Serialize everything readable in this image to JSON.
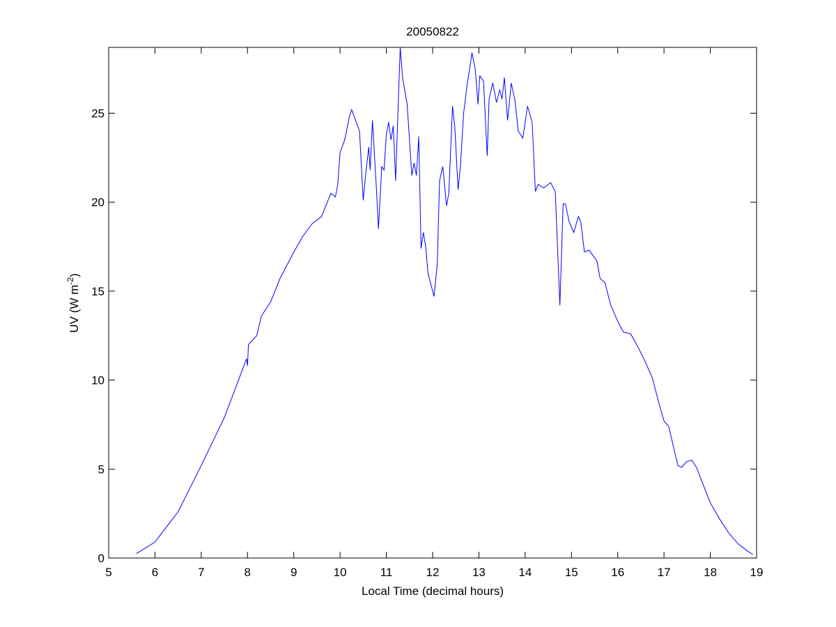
{
  "chart_data": {
    "type": "line",
    "title": "20050822",
    "xlabel": "Local Time (decimal hours)",
    "ylabel": [
      "UV (W m",
      "-2",
      ")"
    ],
    "x": [
      5.6,
      6,
      6.5,
      7,
      7.5,
      7.98,
      8.0,
      8.02,
      8.2,
      8.3,
      8.5,
      8.7,
      8.9,
      9.0,
      9.2,
      9.4,
      9.6,
      9.8,
      9.9,
      9.95,
      10.0,
      10.1,
      10.2,
      10.25,
      10.35,
      10.42,
      10.5,
      10.55,
      10.62,
      10.65,
      10.7,
      10.78,
      10.83,
      10.9,
      10.95,
      11.0,
      11.05,
      11.1,
      11.15,
      11.2,
      11.25,
      11.3,
      11.35,
      11.45,
      11.55,
      11.6,
      11.65,
      11.7,
      11.75,
      11.8,
      11.85,
      11.9,
      11.95,
      12.03,
      12.1,
      12.15,
      12.2,
      12.22,
      12.3,
      12.35,
      12.43,
      12.48,
      12.55,
      12.6,
      12.67,
      12.75,
      12.8,
      12.85,
      12.92,
      12.98,
      13.02,
      13.1,
      13.18,
      13.22,
      13.3,
      13.38,
      13.45,
      13.5,
      13.55,
      13.62,
      13.7,
      13.78,
      13.85,
      13.95,
      14.05,
      14.15,
      14.22,
      14.28,
      14.4,
      14.55,
      14.65,
      14.75,
      14.82,
      14.87,
      14.95,
      15.05,
      15.15,
      15.2,
      15.28,
      15.38,
      15.55,
      15.62,
      15.72,
      15.85,
      16.0,
      16.12,
      16.28,
      16.45,
      16.6,
      16.75,
      16.9,
      17.0,
      17.1,
      17.2,
      17.3,
      17.38,
      17.48,
      17.6,
      17.7,
      17.85,
      18.0,
      18.2,
      18.4,
      18.6,
      18.8,
      18.92
    ],
    "values": [
      0.25,
      0.9,
      2.6,
      5.2,
      7.9,
      11.2,
      10.8,
      12,
      12.5,
      13.6,
      14.4,
      15.7,
      16.7,
      17.2,
      18.1,
      18.8,
      19.2,
      20.5,
      20.3,
      21,
      22.8,
      23.5,
      24.8,
      25.2,
      24.5,
      24,
      20.1,
      21.5,
      23.1,
      21.8,
      24.6,
      21,
      18.5,
      22,
      21.8,
      23.8,
      24.5,
      23.5,
      24.3,
      21.2,
      25,
      28.7,
      27,
      25.5,
      21.5,
      22.2,
      21.5,
      23.7,
      17.4,
      18.3,
      17.5,
      16,
      15.5,
      14.7,
      16.5,
      21.2,
      21.8,
      22,
      19.8,
      20.5,
      25.4,
      24.2,
      20.7,
      22,
      25,
      26.7,
      27.5,
      28.4,
      27.5,
      25.5,
      27.1,
      26.8,
      22.6,
      25.8,
      26.7,
      25.6,
      26.3,
      25.8,
      27,
      24.6,
      26.7,
      25.7,
      24,
      23.6,
      25.4,
      24.5,
      20.6,
      21,
      20.8,
      21.1,
      20.6,
      14.2,
      19.9,
      19.9,
      18.9,
      18.3,
      19.2,
      18.9,
      17.2,
      17.3,
      16.7,
      15.7,
      15.5,
      14.2,
      13.3,
      12.7,
      12.6,
      11.8,
      11,
      10.1,
      8.6,
      7.7,
      7.4,
      6.3,
      5.2,
      5.1,
      5.4,
      5.5,
      5.1,
      4.1,
      3.1,
      2.2,
      1.4,
      0.8,
      0.4,
      0.2
    ],
    "color": "#0000ff",
    "xlim": [
      5,
      19
    ],
    "xticks": [
      5,
      6,
      7,
      8,
      9,
      10,
      11,
      12,
      13,
      14,
      15,
      16,
      17,
      18,
      19
    ],
    "ylim": [
      0,
      28.7
    ],
    "yticks": [
      0,
      5,
      10,
      15,
      20,
      25
    ]
  }
}
